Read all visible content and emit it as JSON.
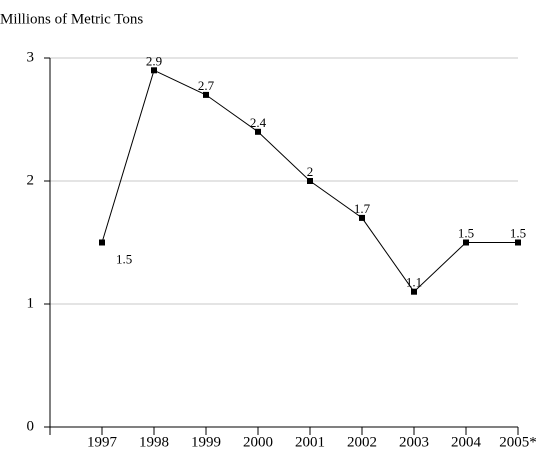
{
  "chart_data": {
    "type": "line",
    "ylabel": "Millions of Metric Tons",
    "categories": [
      "1997",
      "1998",
      "1999",
      "2000",
      "2001",
      "2002",
      "2003",
      "2004",
      "2005*"
    ],
    "series": [
      {
        "name": "Millions of Metric Tons",
        "color": "#000000",
        "values": [
          1.5,
          2.9,
          2.7,
          2.4,
          2,
          1.7,
          1.1,
          1.5,
          1.5
        ]
      }
    ],
    "ylim": [
      0,
      3
    ],
    "yticks": [
      0,
      1,
      2,
      3
    ],
    "grid": true
  }
}
